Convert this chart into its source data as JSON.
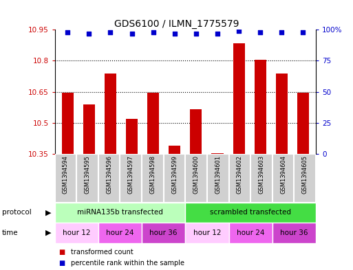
{
  "title": "GDS6100 / ILMN_1775579",
  "samples": [
    "GSM1394594",
    "GSM1394595",
    "GSM1394596",
    "GSM1394597",
    "GSM1394598",
    "GSM1394599",
    "GSM1394600",
    "GSM1394601",
    "GSM1394602",
    "GSM1394603",
    "GSM1394604",
    "GSM1394605"
  ],
  "bar_values": [
    10.645,
    10.59,
    10.74,
    10.52,
    10.645,
    10.39,
    10.565,
    10.355,
    10.885,
    10.805,
    10.74,
    10.645
  ],
  "percentile_values": [
    98,
    97,
    98,
    97,
    98,
    97,
    97,
    97,
    99,
    98,
    98,
    98
  ],
  "bar_color": "#cc0000",
  "percentile_color": "#0000cc",
  "ymin": 10.35,
  "ymax": 10.95,
  "y_ticks": [
    10.35,
    10.5,
    10.65,
    10.8,
    10.95
  ],
  "y2_ticks": [
    0,
    25,
    50,
    75,
    100
  ],
  "y2_labels": [
    "0",
    "25",
    "50",
    "75",
    "100%"
  ],
  "protocol_colors": [
    "#bbffbb",
    "#44dd44"
  ],
  "protocol_labels": [
    "miRNA135b transfected",
    "scrambled transfected"
  ],
  "protocol_ranges": [
    [
      0,
      6
    ],
    [
      6,
      12
    ]
  ],
  "time_groups": [
    {
      "label": "hour 12",
      "range": [
        0,
        2
      ],
      "color": "#ffccff"
    },
    {
      "label": "hour 24",
      "range": [
        2,
        4
      ],
      "color": "#ee66ee"
    },
    {
      "label": "hour 36",
      "range": [
        4,
        6
      ],
      "color": "#cc44cc"
    },
    {
      "label": "hour 12",
      "range": [
        6,
        8
      ],
      "color": "#ffccff"
    },
    {
      "label": "hour 24",
      "range": [
        8,
        10
      ],
      "color": "#ee66ee"
    },
    {
      "label": "hour 36",
      "range": [
        10,
        12
      ],
      "color": "#cc44cc"
    }
  ],
  "sample_bg_color": "#d0d0d0",
  "legend_items": [
    {
      "label": "transformed count",
      "color": "#cc0000"
    },
    {
      "label": "percentile rank within the sample",
      "color": "#0000cc"
    }
  ]
}
